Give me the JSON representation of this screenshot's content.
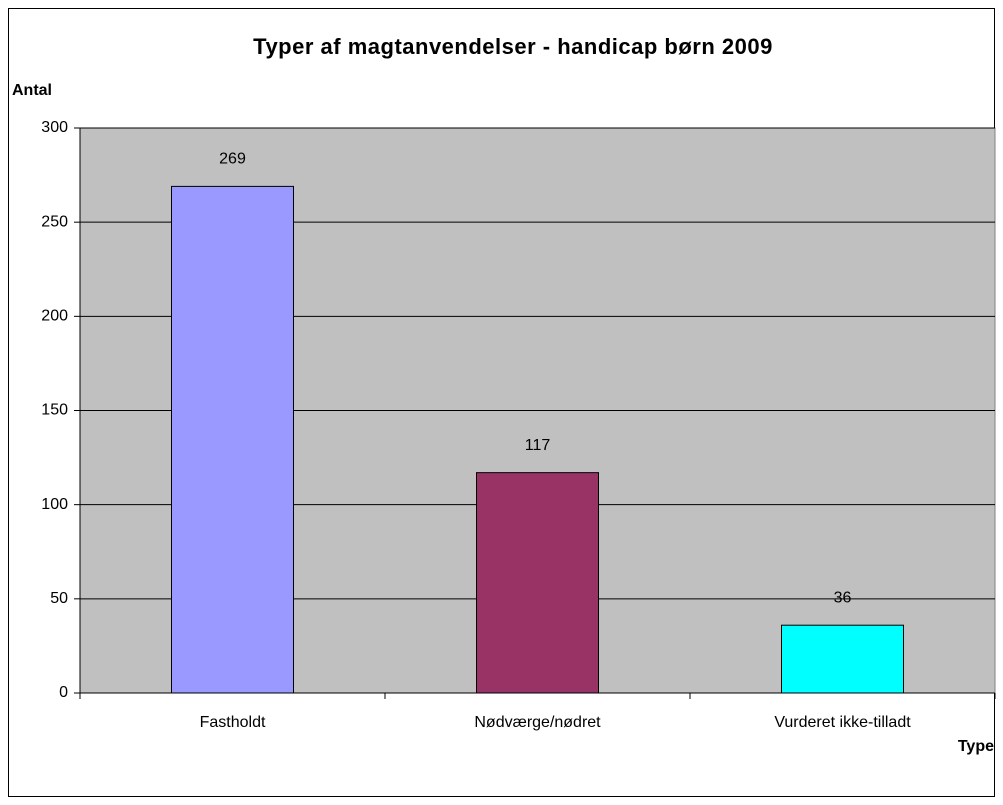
{
  "chart_data": {
    "type": "bar",
    "title": "Typer af magtanvendelser - handicap børn 2009",
    "y_label": "Antal",
    "x_label": "Type",
    "categories": [
      "Fastholdt",
      "Nødværge/nødret",
      "Vurderet ikke-tilladt"
    ],
    "values": [
      269,
      117,
      36
    ],
    "colors": [
      "#9999ff",
      "#993366",
      "#00ffff"
    ],
    "ylim": [
      0,
      300
    ],
    "yticks": [
      0,
      50,
      100,
      150,
      200,
      250,
      300
    ],
    "grid": true
  }
}
